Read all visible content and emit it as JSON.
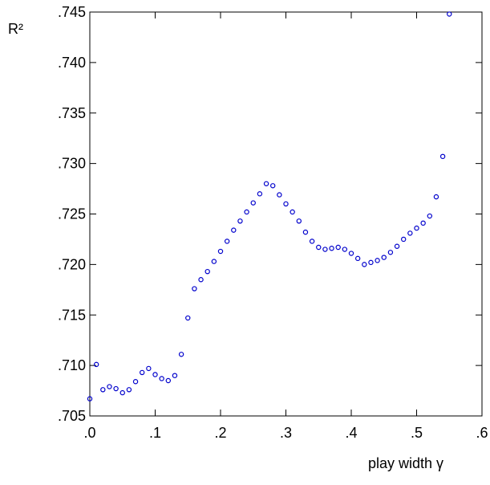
{
  "chart_data": {
    "type": "scatter",
    "title": "",
    "xlabel": "play width γ",
    "ylabel": "R²",
    "xlim": [
      0,
      0.6
    ],
    "ylim": [
      0.705,
      0.745
    ],
    "x_ticks": [
      0,
      0.1,
      0.2,
      0.3,
      0.4,
      0.5,
      0.6
    ],
    "x_tick_labels": [
      ".0",
      ".1",
      ".2",
      ".3",
      ".4",
      ".5",
      ".6"
    ],
    "y_ticks": [
      0.705,
      0.71,
      0.715,
      0.72,
      0.725,
      0.73,
      0.735,
      0.74,
      0.745
    ],
    "y_tick_labels": [
      ".705",
      ".710",
      ".715",
      ".720",
      ".725",
      ".730",
      ".735",
      ".740",
      ".745"
    ],
    "grid": false,
    "marker": "open-circle",
    "marker_color": "#0000cc",
    "x": [
      0.0,
      0.01,
      0.02,
      0.03,
      0.04,
      0.05,
      0.06,
      0.07,
      0.08,
      0.09,
      0.1,
      0.11,
      0.12,
      0.13,
      0.14,
      0.15,
      0.16,
      0.17,
      0.18,
      0.19,
      0.2,
      0.21,
      0.22,
      0.23,
      0.24,
      0.25,
      0.26,
      0.27,
      0.28,
      0.29,
      0.3,
      0.31,
      0.32,
      0.33,
      0.34,
      0.35,
      0.36,
      0.37,
      0.38,
      0.39,
      0.4,
      0.41,
      0.42,
      0.43,
      0.44,
      0.45,
      0.46,
      0.47,
      0.48,
      0.49,
      0.5,
      0.51,
      0.52,
      0.53,
      0.54,
      0.55
    ],
    "y": [
      0.7067,
      0.7101,
      0.7076,
      0.7079,
      0.7077,
      0.7073,
      0.7076,
      0.7084,
      0.7093,
      0.7097,
      0.7091,
      0.7087,
      0.7085,
      0.709,
      0.7111,
      0.7147,
      0.7176,
      0.7185,
      0.7193,
      0.7203,
      0.7213,
      0.7223,
      0.7234,
      0.7243,
      0.7252,
      0.7261,
      0.727,
      0.728,
      0.7278,
      0.7269,
      0.726,
      0.7252,
      0.7243,
      0.7232,
      0.7223,
      0.7217,
      0.7215,
      0.7216,
      0.7217,
      0.7215,
      0.7211,
      0.7206,
      0.72,
      0.7202,
      0.7204,
      0.7207,
      0.7212,
      0.7218,
      0.7225,
      0.7231,
      0.7236,
      0.7241,
      0.7248,
      0.7267,
      0.7307,
      0.7448
    ]
  }
}
